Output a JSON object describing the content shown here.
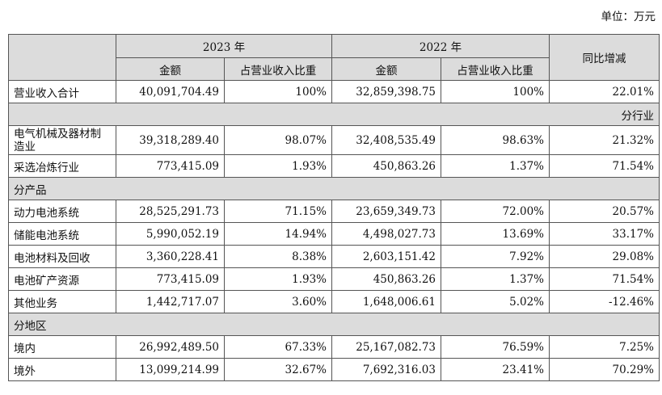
{
  "unit_label": "单位：万元",
  "header": {
    "year_2023": "2023 年",
    "year_2022": "2022 年",
    "amount": "金额",
    "ratio": "占营业收入比重",
    "yoy": "同比增减"
  },
  "total": {
    "label": "营业收入合计",
    "a2023": "40,091,704.49",
    "r2023": "100%",
    "a2022": "32,859,398.75",
    "r2022": "100%",
    "yoy": "22.01%"
  },
  "sections": {
    "industry": "分行业",
    "product": "分产品",
    "region": "分地区"
  },
  "industry_rows": [
    {
      "label": "电气机械及器材制造业",
      "a2023": "39,318,289.40",
      "r2023": "98.07%",
      "a2022": "32,408,535.49",
      "r2022": "98.63%",
      "yoy": "21.32%"
    },
    {
      "label": "采选冶炼行业",
      "a2023": "773,415.09",
      "r2023": "1.93%",
      "a2022": "450,863.26",
      "r2022": "1.37%",
      "yoy": "71.54%"
    }
  ],
  "product_rows": [
    {
      "label": "动力电池系统",
      "a2023": "28,525,291.73",
      "r2023": "71.15%",
      "a2022": "23,659,349.73",
      "r2022": "72.00%",
      "yoy": "20.57%"
    },
    {
      "label": "储能电池系统",
      "a2023": "5,990,052.19",
      "r2023": "14.94%",
      "a2022": "4,498,027.73",
      "r2022": "13.69%",
      "yoy": "33.17%"
    },
    {
      "label": "电池材料及回收",
      "a2023": "3,360,228.41",
      "r2023": "8.38%",
      "a2022": "2,603,151.42",
      "r2022": "7.92%",
      "yoy": "29.08%"
    },
    {
      "label": "电池矿产资源",
      "a2023": "773,415.09",
      "r2023": "1.93%",
      "a2022": "450,863.26",
      "r2022": "1.37%",
      "yoy": "71.54%"
    },
    {
      "label": "其他业务",
      "a2023": "1,442,717.07",
      "r2023": "3.60%",
      "a2022": "1,648,006.61",
      "r2022": "5.02%",
      "yoy": "-12.46%"
    }
  ],
  "region_rows": [
    {
      "label": "境内",
      "a2023": "26,992,489.50",
      "r2023": "67.33%",
      "a2022": "25,167,082.73",
      "r2022": "76.59%",
      "yoy": "7.25%"
    },
    {
      "label": "境外",
      "a2023": "13,099,214.99",
      "r2023": "32.67%",
      "a2022": "7,692,316.03",
      "r2022": "23.41%",
      "yoy": "70.29%"
    }
  ]
}
